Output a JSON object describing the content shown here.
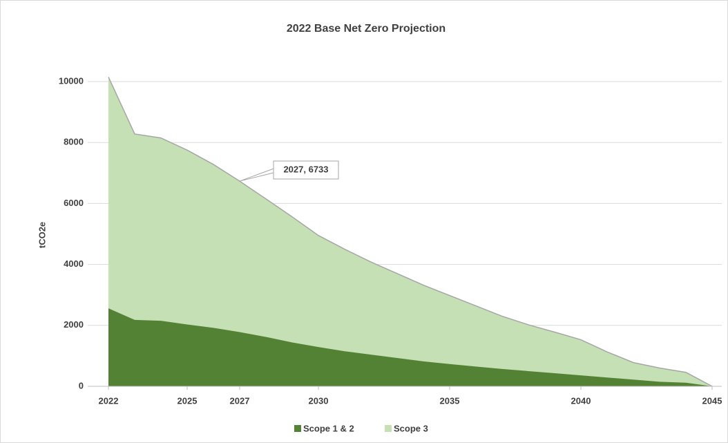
{
  "chart_data": {
    "type": "area",
    "title": "2022 Base Net Zero Projection",
    "y_label": "tCO2e",
    "x": [
      2022,
      2023,
      2024,
      2025,
      2026,
      2027,
      2028,
      2029,
      2030,
      2031,
      2032,
      2033,
      2034,
      2035,
      2036,
      2037,
      2038,
      2039,
      2040,
      2041,
      2042,
      2043,
      2044,
      2045
    ],
    "series": [
      {
        "name": "Scope 3",
        "color": "#c5e0b4",
        "values": [
          10150,
          8280,
          8150,
          7750,
          7280,
          6733,
          6150,
          5560,
          4950,
          4500,
          4080,
          3700,
          3320,
          2980,
          2640,
          2300,
          2020,
          1780,
          1530,
          1130,
          780,
          600,
          460,
          0
        ]
      },
      {
        "name": "Scope 1 & 2",
        "color": "#548235",
        "values": [
          2560,
          2180,
          2150,
          2030,
          1920,
          1780,
          1620,
          1440,
          1290,
          1150,
          1040,
          930,
          820,
          730,
          650,
          570,
          500,
          430,
          360,
          290,
          220,
          150,
          120,
          0
        ]
      }
    ],
    "legend_order": [
      1,
      0
    ],
    "xlim": [
      2022,
      2045
    ],
    "xticks": [
      2022,
      2025,
      2027,
      2030,
      2035,
      2040,
      2045
    ],
    "ylim": [
      0,
      10000
    ],
    "yticks": [
      0,
      2000,
      4000,
      6000,
      8000,
      10000
    ],
    "grid": true,
    "annotations": [
      {
        "x": 2027,
        "y": 6733,
        "label": "2027, 6733"
      }
    ]
  }
}
